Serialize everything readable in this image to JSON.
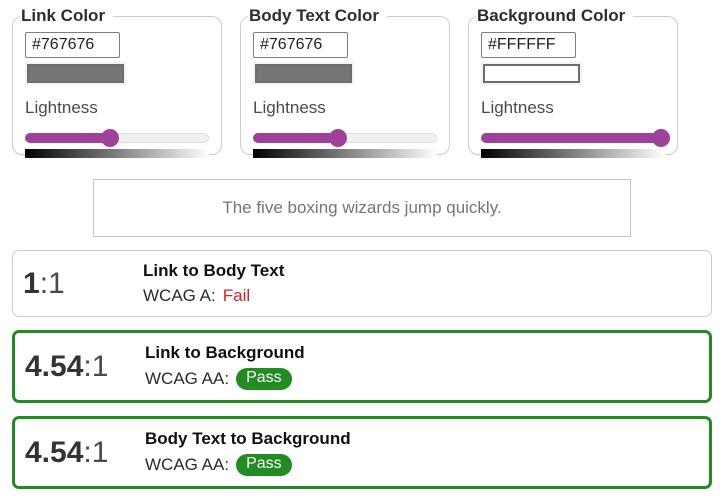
{
  "panels": [
    {
      "legend": "Link Color",
      "hex": "#767676",
      "lightness_label": "Lightness",
      "slider_pos": "46%"
    },
    {
      "legend": "Body Text Color",
      "hex": "#767676",
      "lightness_label": "Lightness",
      "slider_pos": "46%"
    },
    {
      "legend": "Background Color",
      "hex": "#FFFFFF",
      "lightness_label": "Lightness",
      "slider_pos": "98%"
    }
  ],
  "preview": {
    "text": "The five boxing wizards jump quickly.",
    "text_color": "#767676",
    "background_color": "#FFFFFF"
  },
  "results": [
    {
      "ratio": "1",
      "suffix": ":1",
      "title": "Link to Body Text",
      "wcag_label": "WCAG A:",
      "status": "Fail"
    },
    {
      "ratio": "4.54",
      "suffix": ":1",
      "title": "Link to Background",
      "wcag_label": "WCAG AA:",
      "status": "Pass"
    },
    {
      "ratio": "4.54",
      "suffix": ":1",
      "title": "Body Text to Background",
      "wcag_label": "WCAG AA:",
      "status": "Pass"
    }
  ],
  "colors": {
    "slider_accent": "#a04199",
    "pass_green": "#228b22",
    "fail_red": "#dc1f26",
    "panel_border": "#cccccc",
    "swatch_border": "#6d6d6d"
  }
}
